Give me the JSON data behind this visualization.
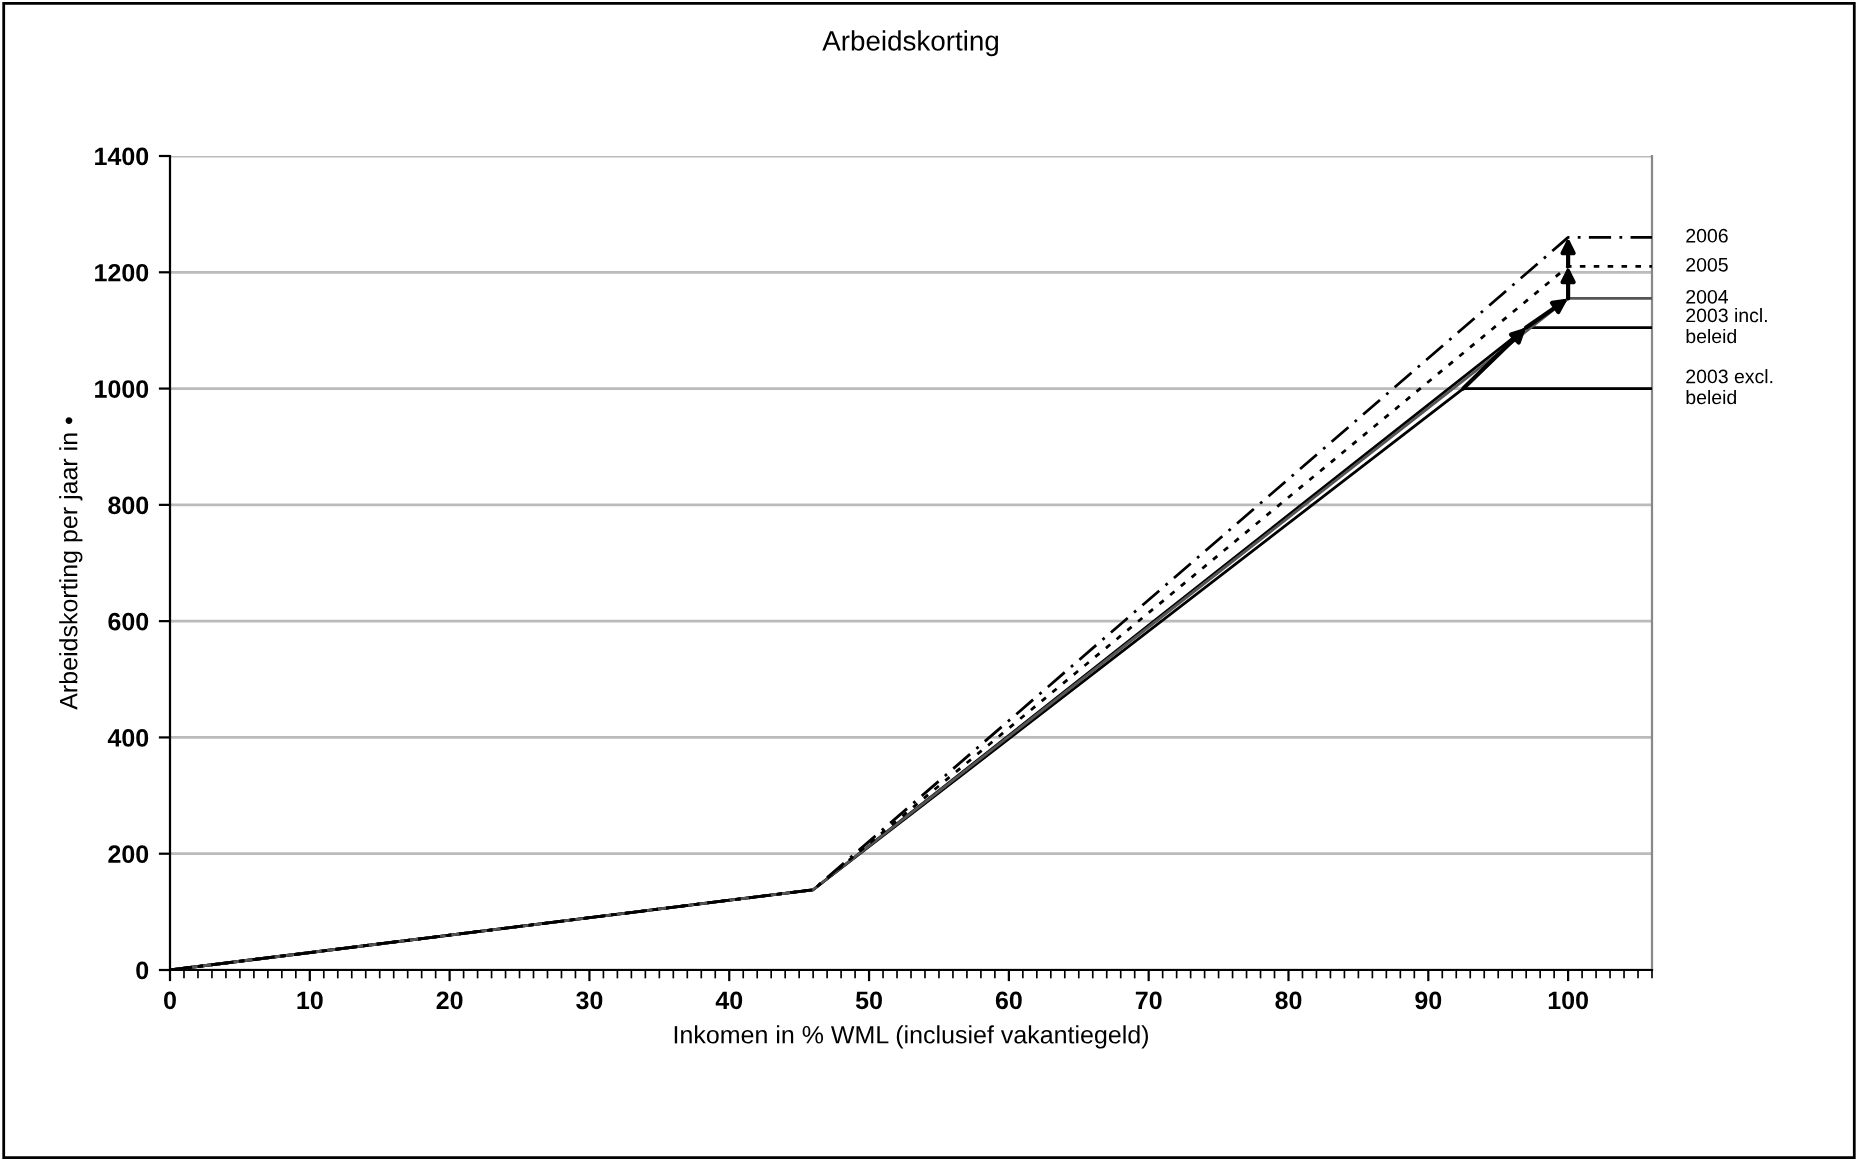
{
  "chart_data": {
    "type": "line",
    "title": "Arbeidskorting",
    "xlabel": "Inkomen in % WML (inclusief vakantiegeld)",
    "ylabel": "Arbeidskorting per jaar in •",
    "xlim": [
      0,
      106
    ],
    "xticks": [
      0,
      10,
      20,
      30,
      40,
      50,
      60,
      70,
      80,
      90,
      100
    ],
    "ylim": [
      0,
      1400
    ],
    "yticks": [
      0,
      200,
      400,
      600,
      800,
      1000,
      1200,
      1400
    ],
    "grid": "y",
    "legend": false,
    "marker": "none",
    "series": [
      {
        "name": "2003 excl.\nbeleid",
        "color": "#000000",
        "line_style": "solid",
        "x": [
          0,
          46,
          92.5,
          106
        ],
        "values": [
          0,
          138,
          1000,
          1000
        ]
      },
      {
        "name": "2003 incl.\nbeleid",
        "color": "#000000",
        "line_style": "solid",
        "x": [
          0,
          46,
          97,
          106
        ],
        "values": [
          0,
          138,
          1105,
          1105
        ]
      },
      {
        "name": "2004",
        "color": "#555555",
        "line_style": "solid",
        "x": [
          0,
          46,
          100,
          106
        ],
        "values": [
          0,
          138,
          1155,
          1155
        ]
      },
      {
        "name": "2005",
        "color": "#000000",
        "line_style": "dotted",
        "x": [
          0,
          46,
          100,
          106
        ],
        "values": [
          0,
          138,
          1210,
          1210
        ]
      },
      {
        "name": "2006",
        "color": "#000000",
        "line_style": "dashed",
        "x": [
          0,
          46,
          100,
          106
        ],
        "values": [
          0,
          138,
          1260,
          1260
        ]
      }
    ]
  }
}
